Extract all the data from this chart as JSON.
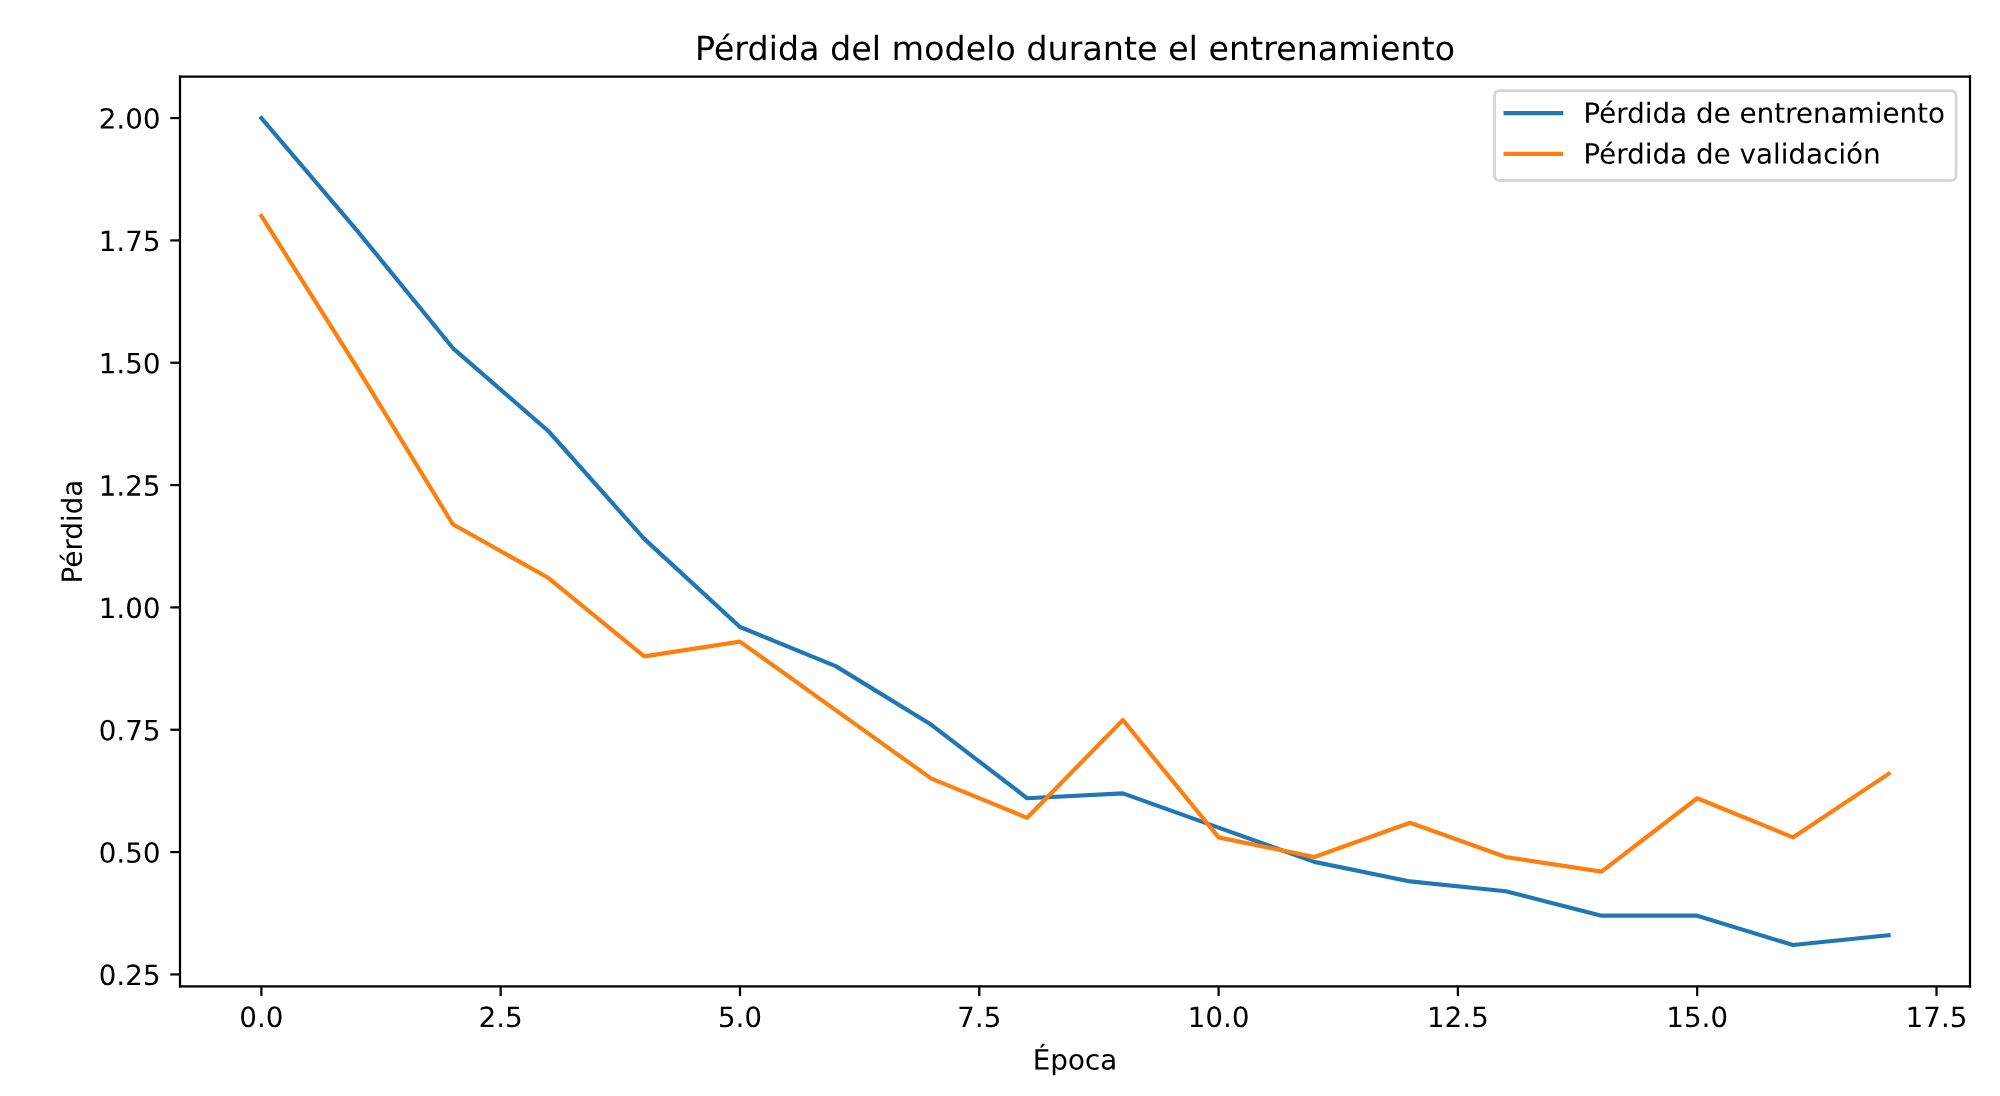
{
  "chart_data": {
    "type": "line",
    "title": "Pérdida del modelo durante el entrenamiento",
    "xlabel": "Época",
    "ylabel": "Pérdida",
    "x": [
      0,
      1,
      2,
      3,
      4,
      5,
      6,
      7,
      8,
      9,
      10,
      11,
      12,
      13,
      14,
      15,
      16,
      17
    ],
    "series": [
      {
        "name": "Pérdida de entrenamiento",
        "color": "#1f77b4",
        "values": [
          2.0,
          1.77,
          1.53,
          1.36,
          1.14,
          0.96,
          0.88,
          0.76,
          0.61,
          0.62,
          0.55,
          0.48,
          0.44,
          0.42,
          0.37,
          0.37,
          0.31,
          0.33
        ]
      },
      {
        "name": "Pérdida de validación",
        "color": "#ff7f0e",
        "values": [
          1.8,
          1.49,
          1.17,
          1.06,
          0.9,
          0.93,
          0.79,
          0.65,
          0.57,
          0.77,
          0.53,
          0.49,
          0.56,
          0.49,
          0.46,
          0.61,
          0.53,
          0.66
        ]
      }
    ],
    "xlim": [
      -0.85,
      17.85
    ],
    "ylim": [
      0.2255,
      2.0845
    ],
    "xticks": [
      {
        "value": 0,
        "label": "0.0"
      },
      {
        "value": 2.5,
        "label": "2.5"
      },
      {
        "value": 5,
        "label": "5.0"
      },
      {
        "value": 7.5,
        "label": "7.5"
      },
      {
        "value": 10,
        "label": "10.0"
      },
      {
        "value": 12.5,
        "label": "12.5"
      },
      {
        "value": 15,
        "label": "15.0"
      },
      {
        "value": 17.5,
        "label": "17.5"
      }
    ],
    "yticks": [
      {
        "value": 0.25,
        "label": "0.25"
      },
      {
        "value": 0.5,
        "label": "0.50"
      },
      {
        "value": 0.75,
        "label": "0.75"
      },
      {
        "value": 1.0,
        "label": "1.00"
      },
      {
        "value": 1.25,
        "label": "1.25"
      },
      {
        "value": 1.5,
        "label": "1.50"
      },
      {
        "value": 1.75,
        "label": "1.75"
      },
      {
        "value": 2.0,
        "label": "2.00"
      }
    ],
    "grid": false,
    "legend": "top right",
    "marker": "none",
    "line_style": "solid"
  }
}
